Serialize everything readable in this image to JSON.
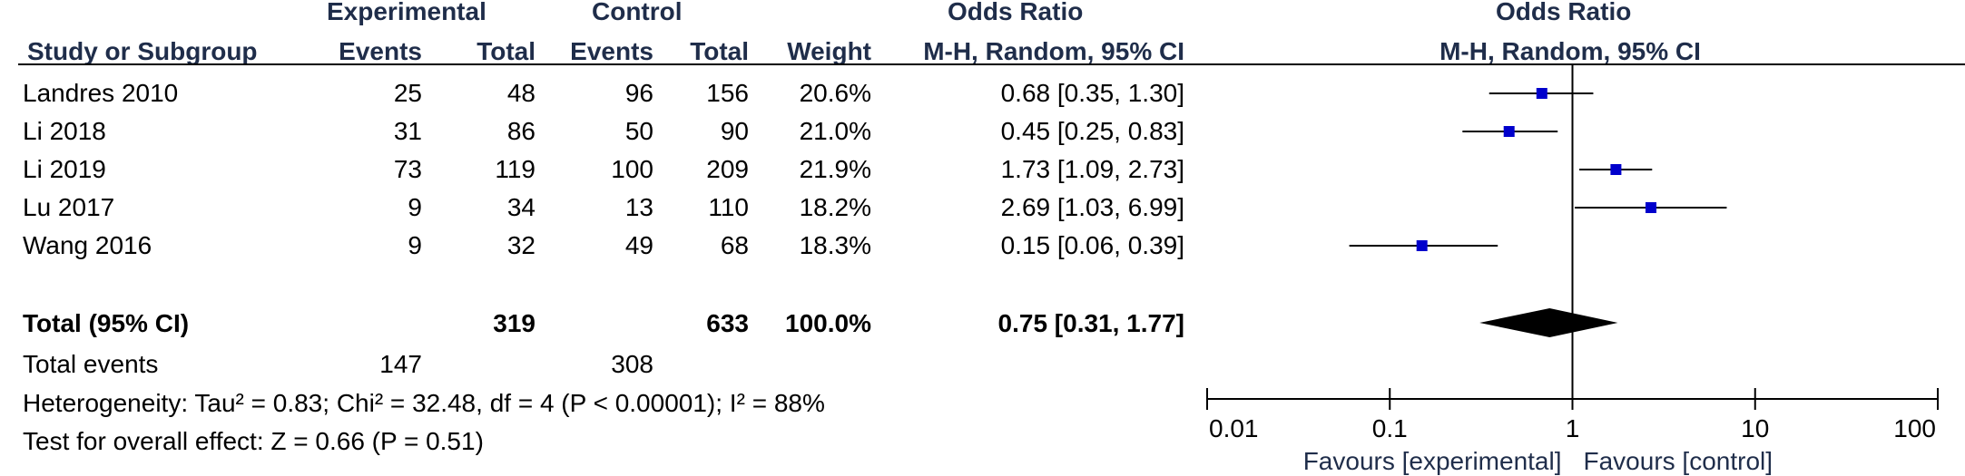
{
  "headers": {
    "group_experimental": "Experimental",
    "group_control": "Control",
    "or_title_left": "Odds Ratio",
    "or_title_right": "Odds Ratio",
    "study": "Study or Subgroup",
    "exp_events": "Events",
    "exp_total": "Total",
    "ctl_events": "Events",
    "ctl_total": "Total",
    "weight": "Weight",
    "method_left": "M-H, Random, 95% CI",
    "method_right": "M-H, Random, 95% CI"
  },
  "studies": [
    {
      "name": "Landres 2010",
      "exp_events": "25",
      "exp_total": "48",
      "ctl_events": "96",
      "ctl_total": "156",
      "weight": "20.6%",
      "ci_text": "0.68 [0.35, 1.30]"
    },
    {
      "name": "Li 2018",
      "exp_events": "31",
      "exp_total": "86",
      "ctl_events": "50",
      "ctl_total": "90",
      "weight": "21.0%",
      "ci_text": "0.45 [0.25, 0.83]"
    },
    {
      "name": "Li 2019",
      "exp_events": "73",
      "exp_total": "119",
      "ctl_events": "100",
      "ctl_total": "209",
      "weight": "21.9%",
      "ci_text": "1.73 [1.09, 2.73]"
    },
    {
      "name": "Lu 2017",
      "exp_events": "9",
      "exp_total": "34",
      "ctl_events": "13",
      "ctl_total": "110",
      "weight": "18.2%",
      "ci_text": "2.69 [1.03, 6.99]"
    },
    {
      "name": "Wang 2016",
      "exp_events": "9",
      "exp_total": "32",
      "ctl_events": "49",
      "ctl_total": "68",
      "weight": "18.3%",
      "ci_text": "0.15 [0.06, 0.39]"
    }
  ],
  "total": {
    "label": "Total (95% CI)",
    "exp_total": "319",
    "ctl_total": "633",
    "weight": "100.0%",
    "ci_text": "0.75 [0.31, 1.77]"
  },
  "total_events": {
    "label": "Total events",
    "exp": "147",
    "ctl": "308"
  },
  "heterogeneity": "Heterogeneity: Tau² = 0.83; Chi² = 32.48, df = 4 (P < 0.00001); I² = 88%",
  "overall_effect": "Test for overall effect: Z = 0.66 (P = 0.51)",
  "colors": {
    "marker": "#0000cc",
    "text_header": "#1f2d4a"
  },
  "chart_data": {
    "type": "forest",
    "x_scale": "log",
    "xlim": [
      0.01,
      100
    ],
    "ticks": [
      0.01,
      0.1,
      1,
      10,
      100
    ],
    "tick_labels": [
      "0.01",
      "0.1",
      "1",
      "10",
      "100"
    ],
    "reference_line": 1,
    "favours_left": "Favours [experimental]",
    "favours_right": "Favours [control]",
    "points": [
      {
        "study": "Landres 2010",
        "or": 0.68,
        "lo": 0.35,
        "hi": 1.3
      },
      {
        "study": "Li 2018",
        "or": 0.45,
        "lo": 0.25,
        "hi": 0.83
      },
      {
        "study": "Li 2019",
        "or": 1.73,
        "lo": 1.09,
        "hi": 2.73
      },
      {
        "study": "Lu 2017",
        "or": 2.69,
        "lo": 1.03,
        "hi": 6.99
      },
      {
        "study": "Wang 2016",
        "or": 0.15,
        "lo": 0.06,
        "hi": 0.39
      }
    ],
    "pooled": {
      "or": 0.75,
      "lo": 0.31,
      "hi": 1.77
    }
  }
}
